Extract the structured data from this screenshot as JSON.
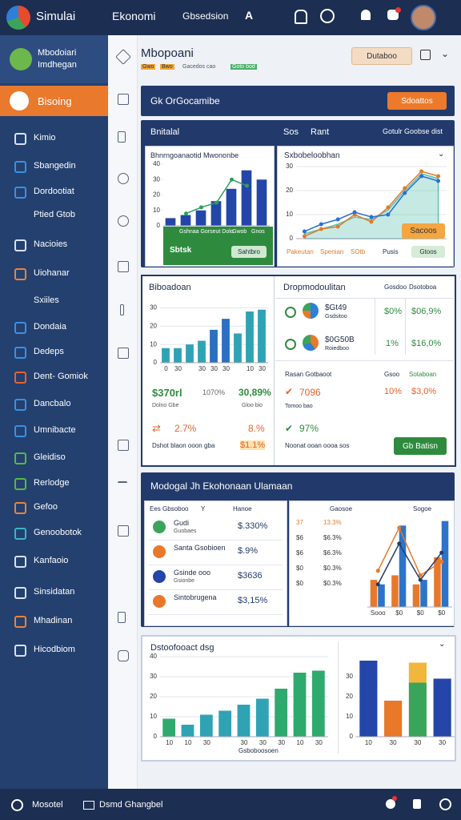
{
  "topbar": {
    "brand": "Simulai",
    "title": "Ekonomi",
    "menu": "Gbsedsion",
    "letter": "A"
  },
  "sidebar": {
    "profile": {
      "name": "Mbodoiari",
      "role": "Imdhegan"
    },
    "active": "Bisoing",
    "items": [
      "Kimio",
      "Sbangedin",
      "Dordootiat",
      "Ptied Gtob",
      "Nacioies",
      "Uiohanar",
      "Sxiiles",
      "Dondaia",
      "Dedeps",
      "Dent- Gomiok",
      "Dancbalo",
      "Umnibacte",
      "Gleidiso",
      "Rerlodge",
      "Gefoo",
      "Genoobotok",
      "Kanfaoio",
      "Sinsidatan",
      "Mhadinan",
      "Hicodbiom"
    ],
    "icon_colors": [
      "#d8e2f2",
      "#3d8fe0",
      "#3d8fe0",
      null,
      "#d8e2f2",
      "#e8843a",
      null,
      "#3d8fe0",
      "#3d8fe0",
      "#e8612c",
      "#3d8fe0",
      "#3d8fe0",
      "#59b845",
      "#59b845",
      "#e8843a",
      "#39b6c9",
      "#d8e2f2",
      "#d8e2f2",
      "#e8843a",
      "#d8e2f2"
    ]
  },
  "header": {
    "title": "Mbopoani",
    "tags": [
      "Gwo",
      "Bwo",
      "Gacedos cao",
      "Goto bod"
    ],
    "button": "Dutaboo"
  },
  "banner": {
    "title": "Gk OrGocamibe",
    "button": "Sdoattos"
  },
  "panel1": {
    "title": "Bnitalal",
    "tabs": [
      "Sos",
      "Rant"
    ],
    "note": "Gotulr Goobse dist",
    "chart_a": {
      "type": "bar",
      "title": "Bhnrngoanaotid Mwononbe",
      "ylim": [
        0,
        40
      ],
      "yticks": [
        0,
        10,
        20,
        30,
        40
      ],
      "grid": false,
      "series": [
        {
          "type": "bar",
          "color": "#2346a8",
          "values": [
            5,
            7,
            10,
            16,
            24,
            36,
            30
          ]
        },
        {
          "type": "line",
          "color": "#2f9e5a",
          "values": [
            null,
            8,
            12,
            15,
            30,
            26,
            null
          ]
        }
      ]
    },
    "strip": {
      "labels": [
        "Gshnaa Gorseut Dolo",
        "Gwob",
        "Gnos"
      ],
      "value": "Sbtsk",
      "button": "Sahtbro"
    },
    "chart_b": {
      "type": "line",
      "title": "Sxbobeloobhan",
      "ylim": [
        0,
        30
      ],
      "yticks": [
        0,
        10,
        20,
        30
      ],
      "grid": true,
      "series": [
        {
          "type": "area",
          "color": "#5cc2b0",
          "values": [
            2,
            4,
            6,
            9,
            8,
            12,
            20,
            27,
            25
          ]
        },
        {
          "type": "line",
          "color": "#e07b2a",
          "values": [
            1,
            4,
            5,
            10,
            7,
            13,
            21,
            28,
            26
          ]
        },
        {
          "type": "line",
          "color": "#2a6fd6",
          "values": [
            3,
            6,
            8,
            11,
            9,
            10,
            19,
            26,
            24
          ]
        }
      ]
    },
    "chart_b_button": "Sacoos",
    "legend": [
      "Pakeutan",
      "Spenian",
      "SOtb",
      "Pusis"
    ],
    "action": "Gtoos"
  },
  "panel2": {
    "left": {
      "chart": {
        "type": "bar",
        "title": "Biboadoan",
        "ylim": [
          0,
          35
        ],
        "yticks": [
          0,
          10,
          20,
          30
        ],
        "grid": true,
        "categories": [
          "0",
          "30",
          null,
          "30",
          "30",
          "30",
          null,
          "10",
          "30"
        ],
        "series": [
          {
            "type": "bar",
            "color": "#2fa3b3",
            "colors": [
              "#2fa3b3",
              "#2fa3b3",
              "#2fa3b3",
              "#2fa3b3",
              "#2a6fc0",
              "#2a6fc0",
              "#2fa3b3",
              "#2fa3b3",
              "#2fa3b3"
            ],
            "values": [
              8,
              8,
              10,
              12,
              18,
              24,
              16,
              28,
              29
            ]
          }
        ]
      },
      "stats": [
        {
          "value": "$370rl",
          "label": "Dolno Gbe"
        },
        {
          "value": "1070%",
          "label": ""
        },
        {
          "value": "30,89%",
          "label": "Gloo bio"
        }
      ],
      "trend": [
        {
          "value": "2.7%",
          "label": "Dshot blaon ooon gba"
        },
        {
          "value": "8.%",
          "label": "$1.1%"
        }
      ]
    },
    "right": {
      "title": "Dropmodoulitan",
      "cols": [
        "Gosdoo",
        "Dsotoboa"
      ],
      "rows": [
        {
          "name": "$Gt49",
          "sub": "Gsdsitoo",
          "pct": "$0%",
          "val": "$06,9%"
        },
        {
          "name": "$0G50B",
          "sub": "Roiedboo",
          "pct": "1%",
          "val": "$16,0%"
        }
      ],
      "sub_head": [
        "Rasan Gotbaoot",
        "Gsoo",
        "Sotaboan"
      ],
      "row3": {
        "name": "7096",
        "sub": "Tomoo bao",
        "pct": "10%",
        "val": "$3,0%"
      },
      "row4": {
        "name": "97%",
        "sub": "Noonat ooan oooa sos"
      },
      "button": "Gb Batisn"
    }
  },
  "panel3": {
    "title": "Modogal Jh Ekohonaan Ulamaan",
    "table": {
      "head": [
        "Ees Gbsoboo",
        "Y",
        "Hanoe"
      ],
      "rows": [
        {
          "name": "Gudi",
          "sub": "Guobaes",
          "val": "$.330%"
        },
        {
          "name": "Santa Gsobioen",
          "sub": "",
          "val": "$.9%"
        },
        {
          "name": "Gsinde ooo",
          "sub": "Gsionbe",
          "val": "$3636"
        },
        {
          "name": "Sintobrugena",
          "sub": "",
          "val": "$3,15%"
        }
      ]
    },
    "right": {
      "head": [
        "Gaosoe",
        "Sogoe"
      ],
      "rows": [
        [
          "37",
          "13.3%"
        ],
        [
          "$6",
          "$6.3%"
        ],
        [
          "$6",
          "$6.3%"
        ],
        [
          "$0",
          "$0.3%"
        ],
        [
          "$0",
          "$0.3%"
        ]
      ],
      "chart": {
        "type": "bar",
        "ylim": [
          0,
          40
        ],
        "yticks": [],
        "grid": false,
        "categories": [
          "Sooo",
          "$0",
          "$0",
          "$0"
        ],
        "series": [
          {
            "type": "bar",
            "color": "#e8782a",
            "values": [
              12,
              14,
              10,
              22
            ]
          },
          {
            "type": "bar",
            "color": "#2d74c9",
            "values": [
              10,
              36,
              12,
              38
            ]
          },
          {
            "type": "line",
            "color": "#e8782a",
            "values": [
              16,
              35,
              14,
              20
            ]
          },
          {
            "type": "line",
            "color": "#223a6b",
            "values": [
              10,
              28,
              12,
              24
            ]
          }
        ]
      }
    }
  },
  "panel4": {
    "title": "Dstoofooact dsg",
    "caption": "Gsboboosoen",
    "chart_left": {
      "type": "bar",
      "ylim": [
        0,
        40
      ],
      "yticks": [
        0,
        10,
        20,
        30,
        40
      ],
      "grid": true,
      "categories": [
        "10",
        "10",
        "30",
        null,
        "30",
        "30",
        "30",
        "10",
        "30"
      ],
      "series": [
        {
          "type": "bar",
          "color": "#2faa6e",
          "colors": [
            "#2faa6e",
            "#2fa3b3",
            "#2fa3b3",
            "#2fa3b3",
            "#2fa3b3",
            "#2fa3b3",
            "#2faa6e",
            "#2faa6e",
            "#2faa6e"
          ],
          "values": [
            9,
            6,
            11,
            13,
            16,
            19,
            24,
            32,
            33
          ]
        }
      ]
    },
    "chart_right": {
      "type": "bar",
      "ylim": [
        0,
        40
      ],
      "yticks": [
        0,
        10,
        20,
        30
      ],
      "grid": false,
      "categories": [
        "10",
        "30",
        "30",
        "30"
      ],
      "series": [
        {
          "type": "bar",
          "color": "#2346a8",
          "colors": [
            "#2346a8",
            "#e8782a",
            "#3aa55a",
            "#2346a8"
          ],
          "values": [
            38,
            18,
            27,
            29
          ]
        },
        {
          "type": "bar",
          "color": "#f2b63c",
          "values": [
            null,
            null,
            10,
            null
          ]
        }
      ]
    }
  },
  "bottombar": {
    "left": "Mosotel",
    "center": "Dsmd Ghangbel"
  }
}
